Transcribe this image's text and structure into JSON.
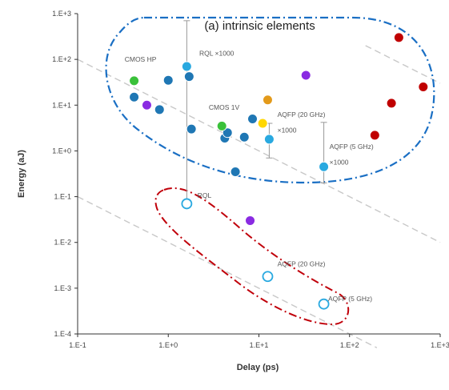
{
  "chart_data": {
    "type": "scatter",
    "title": "",
    "xlabel": "Delay (ps)",
    "ylabel": "Energy (aJ)",
    "x_scale": "log",
    "y_scale": "log",
    "xlim": [
      0.1,
      1000
    ],
    "ylim": [
      0.0001,
      1000
    ],
    "x_ticks": [
      "1.E-1",
      "1.E+0",
      "1.E+1",
      "1.E+2",
      "1.E+3"
    ],
    "y_ticks": [
      "1.E+3",
      "1.E+2",
      "1.E+1",
      "1.E+0",
      "1.E-1",
      "1.E-2",
      "1.E-3",
      "1.E-4"
    ],
    "grid": false,
    "colors": {
      "blue": "#1f77b4",
      "red": "#c00000",
      "purple": "#8a2be2",
      "green": "#3ac13a",
      "yellow": "#ffd700",
      "orange": "#e39a1a",
      "light_blue": "#29a9e0",
      "guide_line": "#c8c8c8",
      "blue_outline": "#1a6fc4",
      "red_outline": "#c0000a"
    },
    "series": [
      {
        "color": "#1f77b4",
        "points": [
          [
            0.42,
            15
          ],
          [
            0.42,
            34
          ],
          [
            0.8,
            8
          ],
          [
            1.0,
            35
          ],
          [
            1.7,
            42
          ],
          [
            1.8,
            3
          ],
          [
            4.2,
            1.9
          ],
          [
            4.5,
            2.5
          ],
          [
            6.9,
            2
          ],
          [
            5.5,
            0.35
          ],
          [
            8.5,
            5
          ]
        ]
      },
      {
        "color": "#c00000",
        "points": [
          [
            350,
            300
          ],
          [
            650,
            25
          ],
          [
            290,
            11
          ],
          [
            190,
            2.2
          ]
        ]
      },
      {
        "color": "#8a2be2",
        "points": [
          [
            0.58,
            10
          ],
          [
            33,
            45
          ],
          [
            8,
            0.03
          ]
        ]
      },
      {
        "color": "#3ac13a",
        "points": [
          [
            0.42,
            34
          ],
          [
            3.9,
            3.5
          ]
        ]
      },
      {
        "color": "#ffd700",
        "points": [
          [
            11,
            4
          ]
        ]
      },
      {
        "color": "#e39a1a",
        "points": [
          [
            12.5,
            13
          ]
        ]
      },
      {
        "color": "#29a9e0",
        "points": [
          [
            1.6,
            70
          ],
          [
            13,
            1.8
          ],
          [
            52,
            0.45
          ]
        ]
      },
      {
        "color": "#29a9e0",
        "marker": "open",
        "points": [
          [
            1.6,
            0.07
          ],
          [
            12.5,
            0.0018
          ],
          [
            52,
            0.00045
          ]
        ]
      }
    ],
    "error_bars": [
      {
        "x": 1.6,
        "low": 0.07,
        "high": 700
      },
      {
        "x": 13,
        "low": 0.7,
        "high": 4
      },
      {
        "x": 52,
        "low": 0.2,
        "high": 4.2
      }
    ],
    "guide_lines": [
      {
        "from": [
          0.1,
          100
        ],
        "to": [
          1000,
          0.01
        ]
      },
      {
        "from": [
          0.1,
          0.1
        ],
        "to": [
          200,
          5e-05
        ]
      },
      {
        "from": [
          150,
          200
        ],
        "to": [
          1000,
          30
        ]
      }
    ],
    "annotations": [
      {
        "text": "(a) intrinsic elements",
        "x": 2.5,
        "y": 450,
        "style": "region-title"
      },
      {
        "text": "CMOS HP",
        "x": 0.33,
        "y": 90
      },
      {
        "text": "RQL ×1000",
        "x": 2.2,
        "y": 120
      },
      {
        "text": "CMOS 1V",
        "x": 2.8,
        "y": 8
      },
      {
        "text": "AQFP (20 GHz)",
        "x": 16,
        "y": 5.5
      },
      {
        "text": "×1000",
        "x": 16,
        "y": 2.5
      },
      {
        "text": "AQFP (5 GHz)",
        "x": 60,
        "y": 1.1
      },
      {
        "text": "×1000",
        "x": 60,
        "y": 0.5
      },
      {
        "text": "RQL",
        "x": 2.1,
        "y": 0.095
      },
      {
        "text": "AQFP (20 GHz)",
        "x": 16,
        "y": 0.003
      },
      {
        "text": "AQFP (5 GHz)",
        "x": 58,
        "y": 0.00052
      }
    ]
  }
}
